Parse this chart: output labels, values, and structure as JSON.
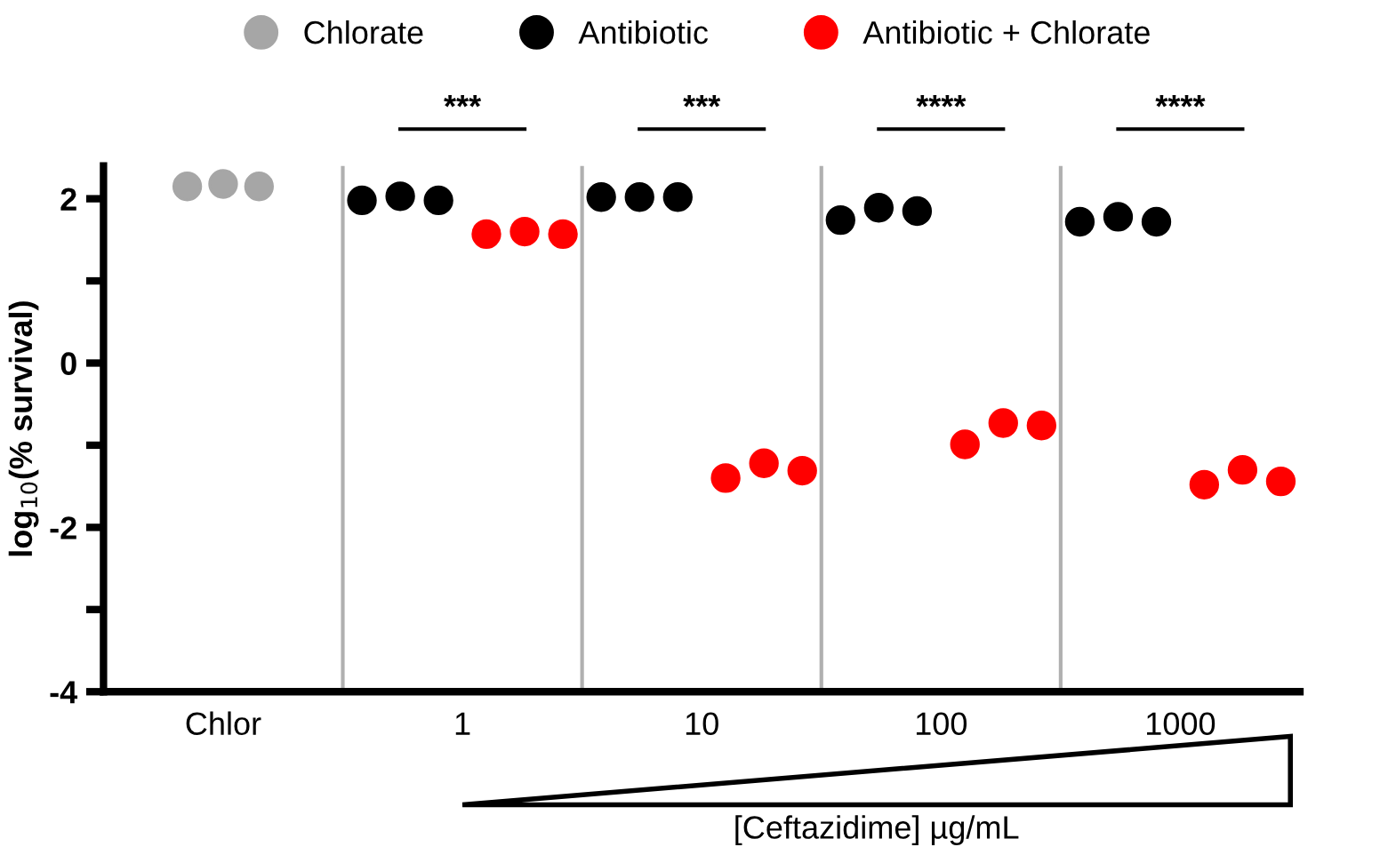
{
  "chart_data": {
    "type": "scatter",
    "ylabel": "log$_{10}$(% survival)",
    "xlabel": "[Ceftazidime] µg/mL",
    "categories": [
      "Chlor",
      "1",
      "10",
      "100",
      "1000"
    ],
    "ylim": [
      -4,
      2.4
    ],
    "yticks": [
      -4,
      {
        "value": -3,
        "label": null
      },
      -2,
      {
        "value": -1,
        "label": null
      },
      0,
      {
        "value": 1,
        "label": null
      },
      2
    ],
    "grid": "x",
    "legend": "top",
    "marker": "circle",
    "series": [
      {
        "name": "Chlorate",
        "color": "#a6a6a6",
        "values": [
          2.15,
          null,
          null,
          null,
          null
        ]
      },
      {
        "color": "#a6a6a6",
        "values": [
          2.18,
          null,
          null,
          null,
          null
        ]
      },
      {
        "color": "#a6a6a6",
        "values": [
          2.15,
          null,
          null,
          null,
          null
        ]
      },
      {
        "name": "Antibiotic",
        "color": "#000000",
        "values": [
          null,
          1.98,
          2.02,
          1.74,
          1.72
        ]
      },
      {
        "color": "#000000",
        "values": [
          null,
          2.03,
          2.02,
          1.89,
          1.78
        ]
      },
      {
        "color": "#000000",
        "values": [
          null,
          1.98,
          2.02,
          1.85,
          1.72
        ]
      },
      {
        "name": "Antibiotic + Chlorate",
        "color": "#ff0000",
        "values": [
          null,
          1.57,
          -1.4,
          -0.99,
          -1.48
        ]
      },
      {
        "color": "#ff0000",
        "values": [
          null,
          1.6,
          -1.22,
          -0.73,
          -1.3
        ]
      },
      {
        "color": "#ff0000",
        "values": [
          null,
          1.57,
          -1.31,
          -0.76,
          -1.44
        ]
      }
    ],
    "annotations": [
      "***",
      "***",
      "****",
      "****"
    ]
  }
}
